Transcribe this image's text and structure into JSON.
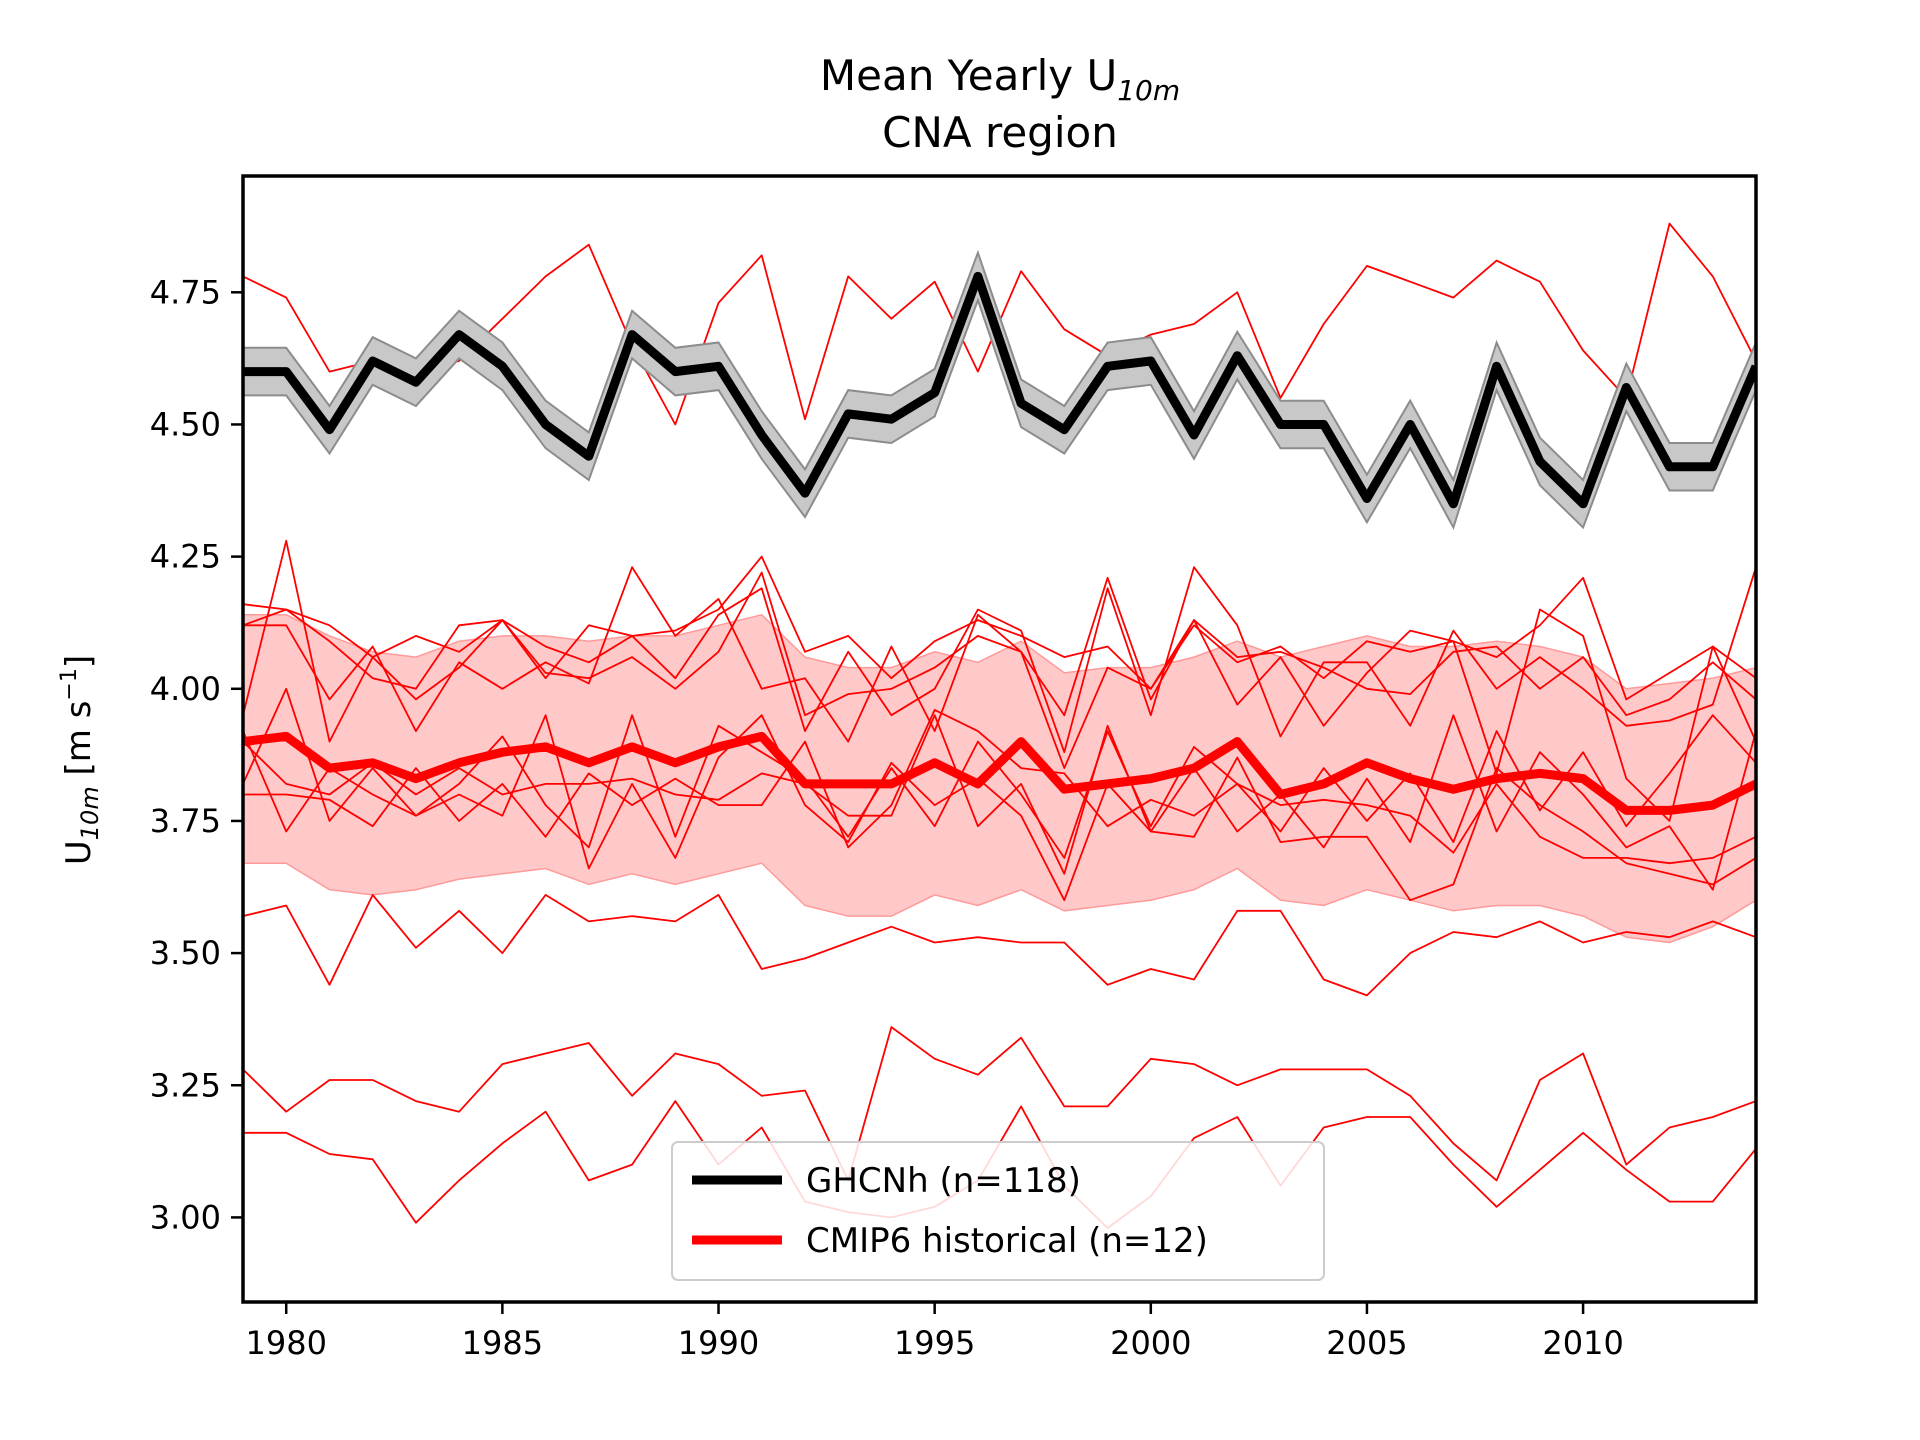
{
  "chart_data": {
    "type": "line",
    "title_line1": "Mean Yearly U",
    "title_sub": "10m",
    "title_line2": "CNA region",
    "ylabel_main": "U",
    "ylabel_sub": "10m",
    "ylabel_units_pre": " [m s",
    "ylabel_units_sup": "−1",
    "ylabel_units_post": "]",
    "xlim": [
      1979,
      2014
    ],
    "ylim": [
      2.84,
      4.97
    ],
    "x_ticks": [
      1980,
      1985,
      1990,
      1995,
      2000,
      2005,
      2010
    ],
    "y_ticks": [
      3.0,
      3.25,
      3.5,
      3.75,
      4.0,
      4.25,
      4.5,
      4.75
    ],
    "y_tick_labels": [
      "3.00",
      "3.25",
      "3.50",
      "3.75",
      "4.00",
      "4.25",
      "4.50",
      "4.75"
    ],
    "grid": false,
    "legend_position": "bottom-center",
    "legend": [
      {
        "label": "GHCNh (n=118)",
        "color": "#000000"
      },
      {
        "label": "CMIP6 historical (n=12)",
        "color": "#ff0000"
      }
    ],
    "years": [
      1979,
      1980,
      1981,
      1982,
      1983,
      1984,
      1985,
      1986,
      1987,
      1988,
      1989,
      1990,
      1991,
      1992,
      1993,
      1994,
      1995,
      1996,
      1997,
      1998,
      1999,
      2000,
      2001,
      2002,
      2003,
      2004,
      2005,
      2006,
      2007,
      2008,
      2009,
      2010,
      2011,
      2012,
      2013,
      2014
    ],
    "ghcnh": {
      "name": "GHCNh (n=118)",
      "color": "#000000",
      "values": [
        4.6,
        4.6,
        4.49,
        4.62,
        4.58,
        4.67,
        4.61,
        4.5,
        4.44,
        4.67,
        4.6,
        4.61,
        4.48,
        4.37,
        4.52,
        4.51,
        4.56,
        4.78,
        4.54,
        4.49,
        4.61,
        4.62,
        4.48,
        4.63,
        4.5,
        4.5,
        4.36,
        4.5,
        4.35,
        4.61,
        4.43,
        4.35,
        4.57,
        4.42,
        4.42,
        4.61
      ],
      "band_halfwidth": 0.045
    },
    "cmip6_mean": {
      "name": "CMIP6 historical (n=12)",
      "color": "#ff0000",
      "values": [
        3.9,
        3.91,
        3.85,
        3.86,
        3.83,
        3.86,
        3.88,
        3.89,
        3.86,
        3.89,
        3.86,
        3.89,
        3.91,
        3.82,
        3.82,
        3.82,
        3.86,
        3.82,
        3.9,
        3.81,
        3.82,
        3.83,
        3.85,
        3.9,
        3.8,
        3.82,
        3.86,
        3.83,
        3.81,
        3.83,
        3.84,
        3.83,
        3.77,
        3.77,
        3.78,
        3.82
      ]
    },
    "cmip6_band": {
      "color": "#ffc0c0",
      "upper": [
        4.14,
        4.14,
        4.1,
        4.07,
        4.06,
        4.09,
        4.1,
        4.1,
        4.09,
        4.1,
        4.1,
        4.12,
        4.14,
        4.06,
        4.04,
        4.04,
        4.07,
        4.05,
        4.09,
        4.03,
        4.04,
        4.04,
        4.06,
        4.09,
        4.06,
        4.08,
        4.1,
        4.08,
        4.08,
        4.09,
        4.08,
        4.06,
        4.0,
        4.01,
        4.02,
        4.04
      ],
      "lower": [
        3.67,
        3.67,
        3.62,
        3.61,
        3.62,
        3.64,
        3.65,
        3.66,
        3.63,
        3.65,
        3.63,
        3.65,
        3.67,
        3.59,
        3.57,
        3.57,
        3.61,
        3.59,
        3.62,
        3.58,
        3.59,
        3.6,
        3.62,
        3.66,
        3.6,
        3.59,
        3.62,
        3.6,
        3.58,
        3.59,
        3.59,
        3.57,
        3.53,
        3.52,
        3.55,
        3.6
      ]
    },
    "cmip6_members": [
      [
        4.78,
        4.74,
        4.6,
        4.62,
        4.6,
        4.62,
        4.7,
        4.78,
        4.84,
        4.65,
        4.5,
        4.73,
        4.82,
        4.51,
        4.78,
        4.7,
        4.77,
        4.6,
        4.79,
        4.68,
        4.63,
        4.67,
        4.69,
        4.75,
        4.55,
        4.69,
        4.8,
        4.77,
        4.74,
        4.81,
        4.77,
        4.64,
        4.55,
        4.88,
        4.78,
        4.62
      ],
      [
        4.16,
        4.15,
        4.12,
        4.06,
        4.1,
        4.07,
        4.13,
        4.08,
        4.05,
        4.1,
        4.11,
        4.15,
        4.25,
        4.07,
        4.1,
        4.02,
        4.09,
        4.13,
        4.1,
        4.06,
        4.08,
        4.0,
        4.12,
        4.05,
        4.08,
        4.02,
        4.09,
        4.07,
        4.09,
        4.06,
        4.12,
        4.21,
        3.98,
        4.03,
        4.08,
        4.02
      ],
      [
        3.95,
        4.28,
        3.9,
        4.06,
        3.98,
        4.04,
        4.13,
        4.02,
        4.12,
        4.1,
        4.02,
        4.14,
        4.19,
        3.92,
        4.07,
        3.95,
        4.0,
        4.15,
        4.11,
        3.88,
        4.19,
        3.95,
        4.23,
        4.12,
        3.91,
        4.05,
        4.05,
        3.93,
        4.11,
        4.0,
        4.06,
        4.0,
        3.93,
        3.94,
        3.97,
        4.23
      ],
      [
        4.12,
        4.12,
        3.98,
        4.08,
        3.92,
        4.05,
        4.0,
        4.05,
        4.01,
        4.23,
        4.1,
        4.17,
        4.0,
        4.02,
        3.9,
        4.08,
        3.92,
        4.14,
        4.07,
        3.95,
        4.21,
        3.98,
        4.13,
        3.97,
        4.06,
        3.93,
        4.03,
        4.11,
        4.09,
        3.84,
        4.15,
        4.1,
        3.83,
        3.75,
        4.08,
        3.9
      ],
      [
        3.82,
        4.0,
        3.75,
        3.85,
        3.76,
        3.82,
        3.91,
        3.78,
        3.7,
        3.95,
        3.72,
        3.93,
        3.88,
        3.83,
        3.72,
        3.85,
        3.74,
        3.9,
        3.8,
        3.68,
        3.92,
        3.74,
        3.89,
        3.82,
        3.73,
        3.85,
        3.75,
        3.84,
        3.71,
        3.92,
        3.77,
        3.88,
        3.74,
        3.84,
        3.95,
        3.86
      ],
      [
        3.92,
        3.73,
        3.85,
        3.8,
        3.76,
        3.8,
        3.76,
        3.95,
        3.66,
        3.82,
        3.68,
        3.87,
        3.95,
        3.78,
        3.71,
        3.86,
        3.78,
        3.83,
        3.76,
        3.6,
        3.82,
        3.73,
        3.85,
        3.73,
        3.8,
        3.7,
        3.83,
        3.71,
        3.95,
        3.73,
        3.88,
        3.8,
        3.7,
        3.74,
        3.62,
        3.92
      ],
      [
        3.9,
        3.82,
        3.8,
        3.86,
        3.8,
        3.85,
        3.8,
        3.82,
        3.82,
        3.83,
        3.8,
        3.79,
        3.84,
        3.82,
        3.76,
        3.76,
        3.95,
        3.74,
        3.82,
        3.65,
        3.93,
        3.73,
        3.72,
        3.87,
        3.71,
        3.72,
        3.72,
        3.6,
        3.63,
        3.85,
        3.78,
        3.73,
        3.67,
        3.65,
        3.63,
        3.68
      ],
      [
        3.8,
        3.8,
        3.79,
        3.74,
        3.85,
        3.75,
        3.82,
        3.72,
        3.84,
        3.78,
        3.83,
        3.78,
        3.78,
        3.9,
        3.7,
        3.78,
        3.96,
        3.92,
        3.85,
        3.84,
        3.74,
        3.79,
        3.76,
        3.82,
        3.78,
        3.79,
        3.78,
        3.76,
        3.69,
        3.82,
        3.72,
        3.68,
        3.68,
        3.67,
        3.68,
        3.72
      ],
      [
        3.57,
        3.59,
        3.44,
        3.61,
        3.51,
        3.58,
        3.5,
        3.61,
        3.56,
        3.57,
        3.56,
        3.61,
        3.47,
        3.49,
        3.52,
        3.55,
        3.52,
        3.53,
        3.52,
        3.52,
        3.44,
        3.47,
        3.45,
        3.58,
        3.58,
        3.45,
        3.42,
        3.5,
        3.54,
        3.53,
        3.56,
        3.52,
        3.54,
        3.53,
        3.56,
        3.53
      ],
      [
        3.28,
        3.2,
        3.26,
        3.26,
        3.22,
        3.2,
        3.29,
        3.31,
        3.33,
        3.23,
        3.31,
        3.29,
        3.23,
        3.24,
        3.07,
        3.36,
        3.3,
        3.27,
        3.34,
        3.21,
        3.21,
        3.3,
        3.29,
        3.25,
        3.28,
        3.28,
        3.28,
        3.23,
        3.14,
        3.07,
        3.26,
        3.31,
        3.1,
        3.17,
        3.19,
        3.22
      ],
      [
        3.16,
        3.16,
        3.12,
        3.11,
        2.99,
        3.07,
        3.14,
        3.2,
        3.07,
        3.1,
        3.22,
        3.1,
        3.17,
        3.03,
        3.01,
        3.0,
        3.02,
        3.07,
        3.21,
        3.06,
        2.98,
        3.04,
        3.15,
        3.19,
        3.06,
        3.17,
        3.19,
        3.19,
        3.1,
        3.02,
        3.09,
        3.16,
        3.09,
        3.03,
        3.03,
        3.13
      ],
      [
        4.12,
        4.15,
        4.09,
        4.02,
        4.0,
        4.12,
        4.13,
        4.03,
        4.02,
        4.06,
        4.0,
        4.07,
        4.22,
        3.95,
        3.99,
        4.0,
        4.04,
        4.1,
        4.07,
        3.85,
        4.04,
        4.0,
        4.13,
        4.06,
        4.07,
        4.04,
        4.0,
        3.99,
        4.07,
        4.08,
        4.0,
        4.06,
        3.95,
        3.98,
        4.05,
        3.98
      ]
    ]
  }
}
